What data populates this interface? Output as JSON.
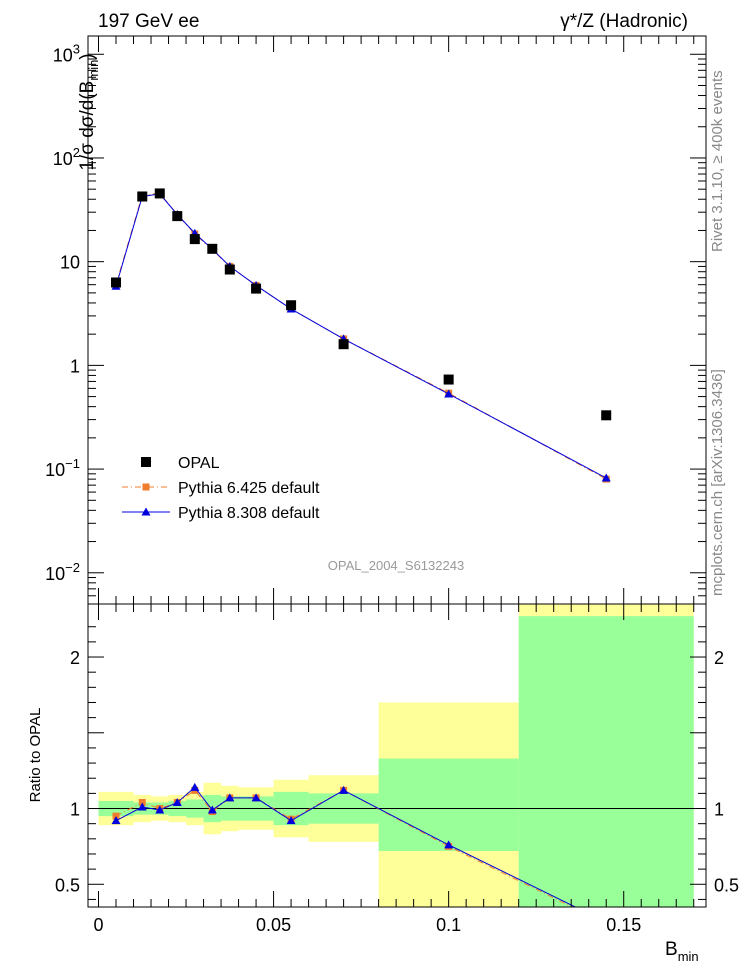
{
  "header": {
    "left_title": "197 GeV ee",
    "right_title": "γ*/Z (Hadronic)"
  },
  "side_labels": {
    "rivet": "Rivet 3.1.10, ≥ 400k events",
    "mcplots": "mcplots.cern.ch [arXiv:1306.3436]"
  },
  "watermark": "OPAL_2004_S6132243",
  "chart_data": [
    {
      "type": "scatter",
      "panel": "main",
      "ylabel": "1/σ dσ/d(B_min)",
      "yscale": "log",
      "ylim": [
        0.005,
        1500
      ],
      "xlim": [
        -0.003,
        0.1735
      ],
      "y_ticks": [
        {
          "v": 0.01,
          "base": "10",
          "exp": "−2"
        },
        {
          "v": 0.1,
          "base": "10",
          "exp": "−1"
        },
        {
          "v": 1,
          "base": "1",
          "exp": ""
        },
        {
          "v": 10,
          "base": "10",
          "exp": ""
        },
        {
          "v": 100,
          "base": "10",
          "exp": "2"
        },
        {
          "v": 1000,
          "base": "10",
          "exp": "3"
        }
      ],
      "legend_position": "bottom-left",
      "series": [
        {
          "name": "OPAL",
          "marker": "square",
          "color": "#000000",
          "x": [
            0.005,
            0.0125,
            0.0175,
            0.0225,
            0.0275,
            0.0325,
            0.0375,
            0.045,
            0.055,
            0.07,
            0.1,
            0.145
          ],
          "y": [
            6.3,
            42.5,
            45.5,
            27.5,
            16.5,
            13.3,
            8.4,
            5.5,
            3.8,
            1.6,
            0.73,
            0.33
          ]
        },
        {
          "name": "Pythia 6.425 default",
          "marker": "square-small",
          "color": "#f07d2d",
          "line": "dash-dot",
          "x": [
            0.005,
            0.0125,
            0.0175,
            0.0225,
            0.0275,
            0.0325,
            0.0375,
            0.045,
            0.055,
            0.07,
            0.1,
            0.145
          ],
          "y": [
            6.0,
            44.0,
            45.5,
            28.5,
            18.5,
            13.0,
            9.0,
            5.9,
            3.5,
            1.8,
            0.54,
            0.08
          ]
        },
        {
          "name": "Pythia 8.308 default",
          "marker": "triangle",
          "color": "#0000dd",
          "line": "solid",
          "x": [
            0.005,
            0.0125,
            0.0175,
            0.0225,
            0.0275,
            0.0325,
            0.0375,
            0.045,
            0.055,
            0.07,
            0.1,
            0.145
          ],
          "y": [
            5.8,
            42.5,
            45.0,
            28.5,
            18.8,
            13.2,
            9.0,
            5.9,
            3.5,
            1.8,
            0.53,
            0.082
          ]
        }
      ]
    },
    {
      "type": "line",
      "panel": "ratio",
      "ylabel": "Ratio to OPAL",
      "xlabel": "B_min",
      "ylim": [
        0.35,
        2.35
      ],
      "xlim": [
        -0.003,
        0.1735
      ],
      "y_ticks": [
        0.5,
        1,
        1.5,
        2
      ],
      "y_tick_labels": [
        "0.5",
        "1",
        "",
        "2"
      ],
      "x_ticks": [
        0,
        0.05,
        0.1,
        0.15
      ],
      "x_tick_labels": [
        "0",
        "0.05",
        "0.1",
        "0.15"
      ],
      "uncertainty_bands": {
        "bin_edges": [
          0,
          0.01,
          0.015,
          0.02,
          0.025,
          0.03,
          0.035,
          0.04,
          0.05,
          0.06,
          0.08,
          0.12,
          0.17
        ],
        "inner_color": "#99ff99",
        "outer_color": "#ffff99",
        "inner": [
          [
            0.95,
            1.05
          ],
          [
            0.96,
            1.04
          ],
          [
            0.96,
            1.04
          ],
          [
            0.95,
            1.05
          ],
          [
            0.94,
            1.06
          ],
          [
            0.91,
            1.09
          ],
          [
            0.92,
            1.08
          ],
          [
            0.92,
            1.08
          ],
          [
            0.89,
            1.11
          ],
          [
            0.9,
            1.1
          ],
          [
            0.72,
            1.33
          ],
          [
            0.35,
            2.27
          ]
        ],
        "outer": [
          [
            0.89,
            1.11
          ],
          [
            0.91,
            1.09
          ],
          [
            0.92,
            1.08
          ],
          [
            0.91,
            1.09
          ],
          [
            0.89,
            1.11
          ],
          [
            0.83,
            1.17
          ],
          [
            0.85,
            1.15
          ],
          [
            0.86,
            1.14
          ],
          [
            0.81,
            1.19
          ],
          [
            0.78,
            1.22
          ],
          [
            0.35,
            1.7
          ],
          [
            0.35,
            2.35
          ]
        ]
      },
      "series": [
        {
          "name": "Pythia 6.425 default",
          "color": "#f07d2d",
          "x": [
            0.005,
            0.0125,
            0.0175,
            0.0225,
            0.0275,
            0.0325,
            0.0375,
            0.045,
            0.055,
            0.07,
            0.1,
            0.145
          ],
          "y": [
            0.95,
            1.04,
            1.0,
            1.04,
            1.12,
            0.98,
            1.07,
            1.07,
            0.93,
            1.12,
            0.75,
            0.24
          ]
        },
        {
          "name": "Pythia 8.308 default",
          "color": "#0000dd",
          "x": [
            0.005,
            0.0125,
            0.0175,
            0.0225,
            0.0275,
            0.0325,
            0.0375,
            0.045,
            0.055,
            0.07,
            0.1,
            0.145
          ],
          "y": [
            0.92,
            1.01,
            0.99,
            1.04,
            1.14,
            0.99,
            1.07,
            1.07,
            0.92,
            1.12,
            0.76,
            0.25
          ]
        }
      ]
    }
  ]
}
